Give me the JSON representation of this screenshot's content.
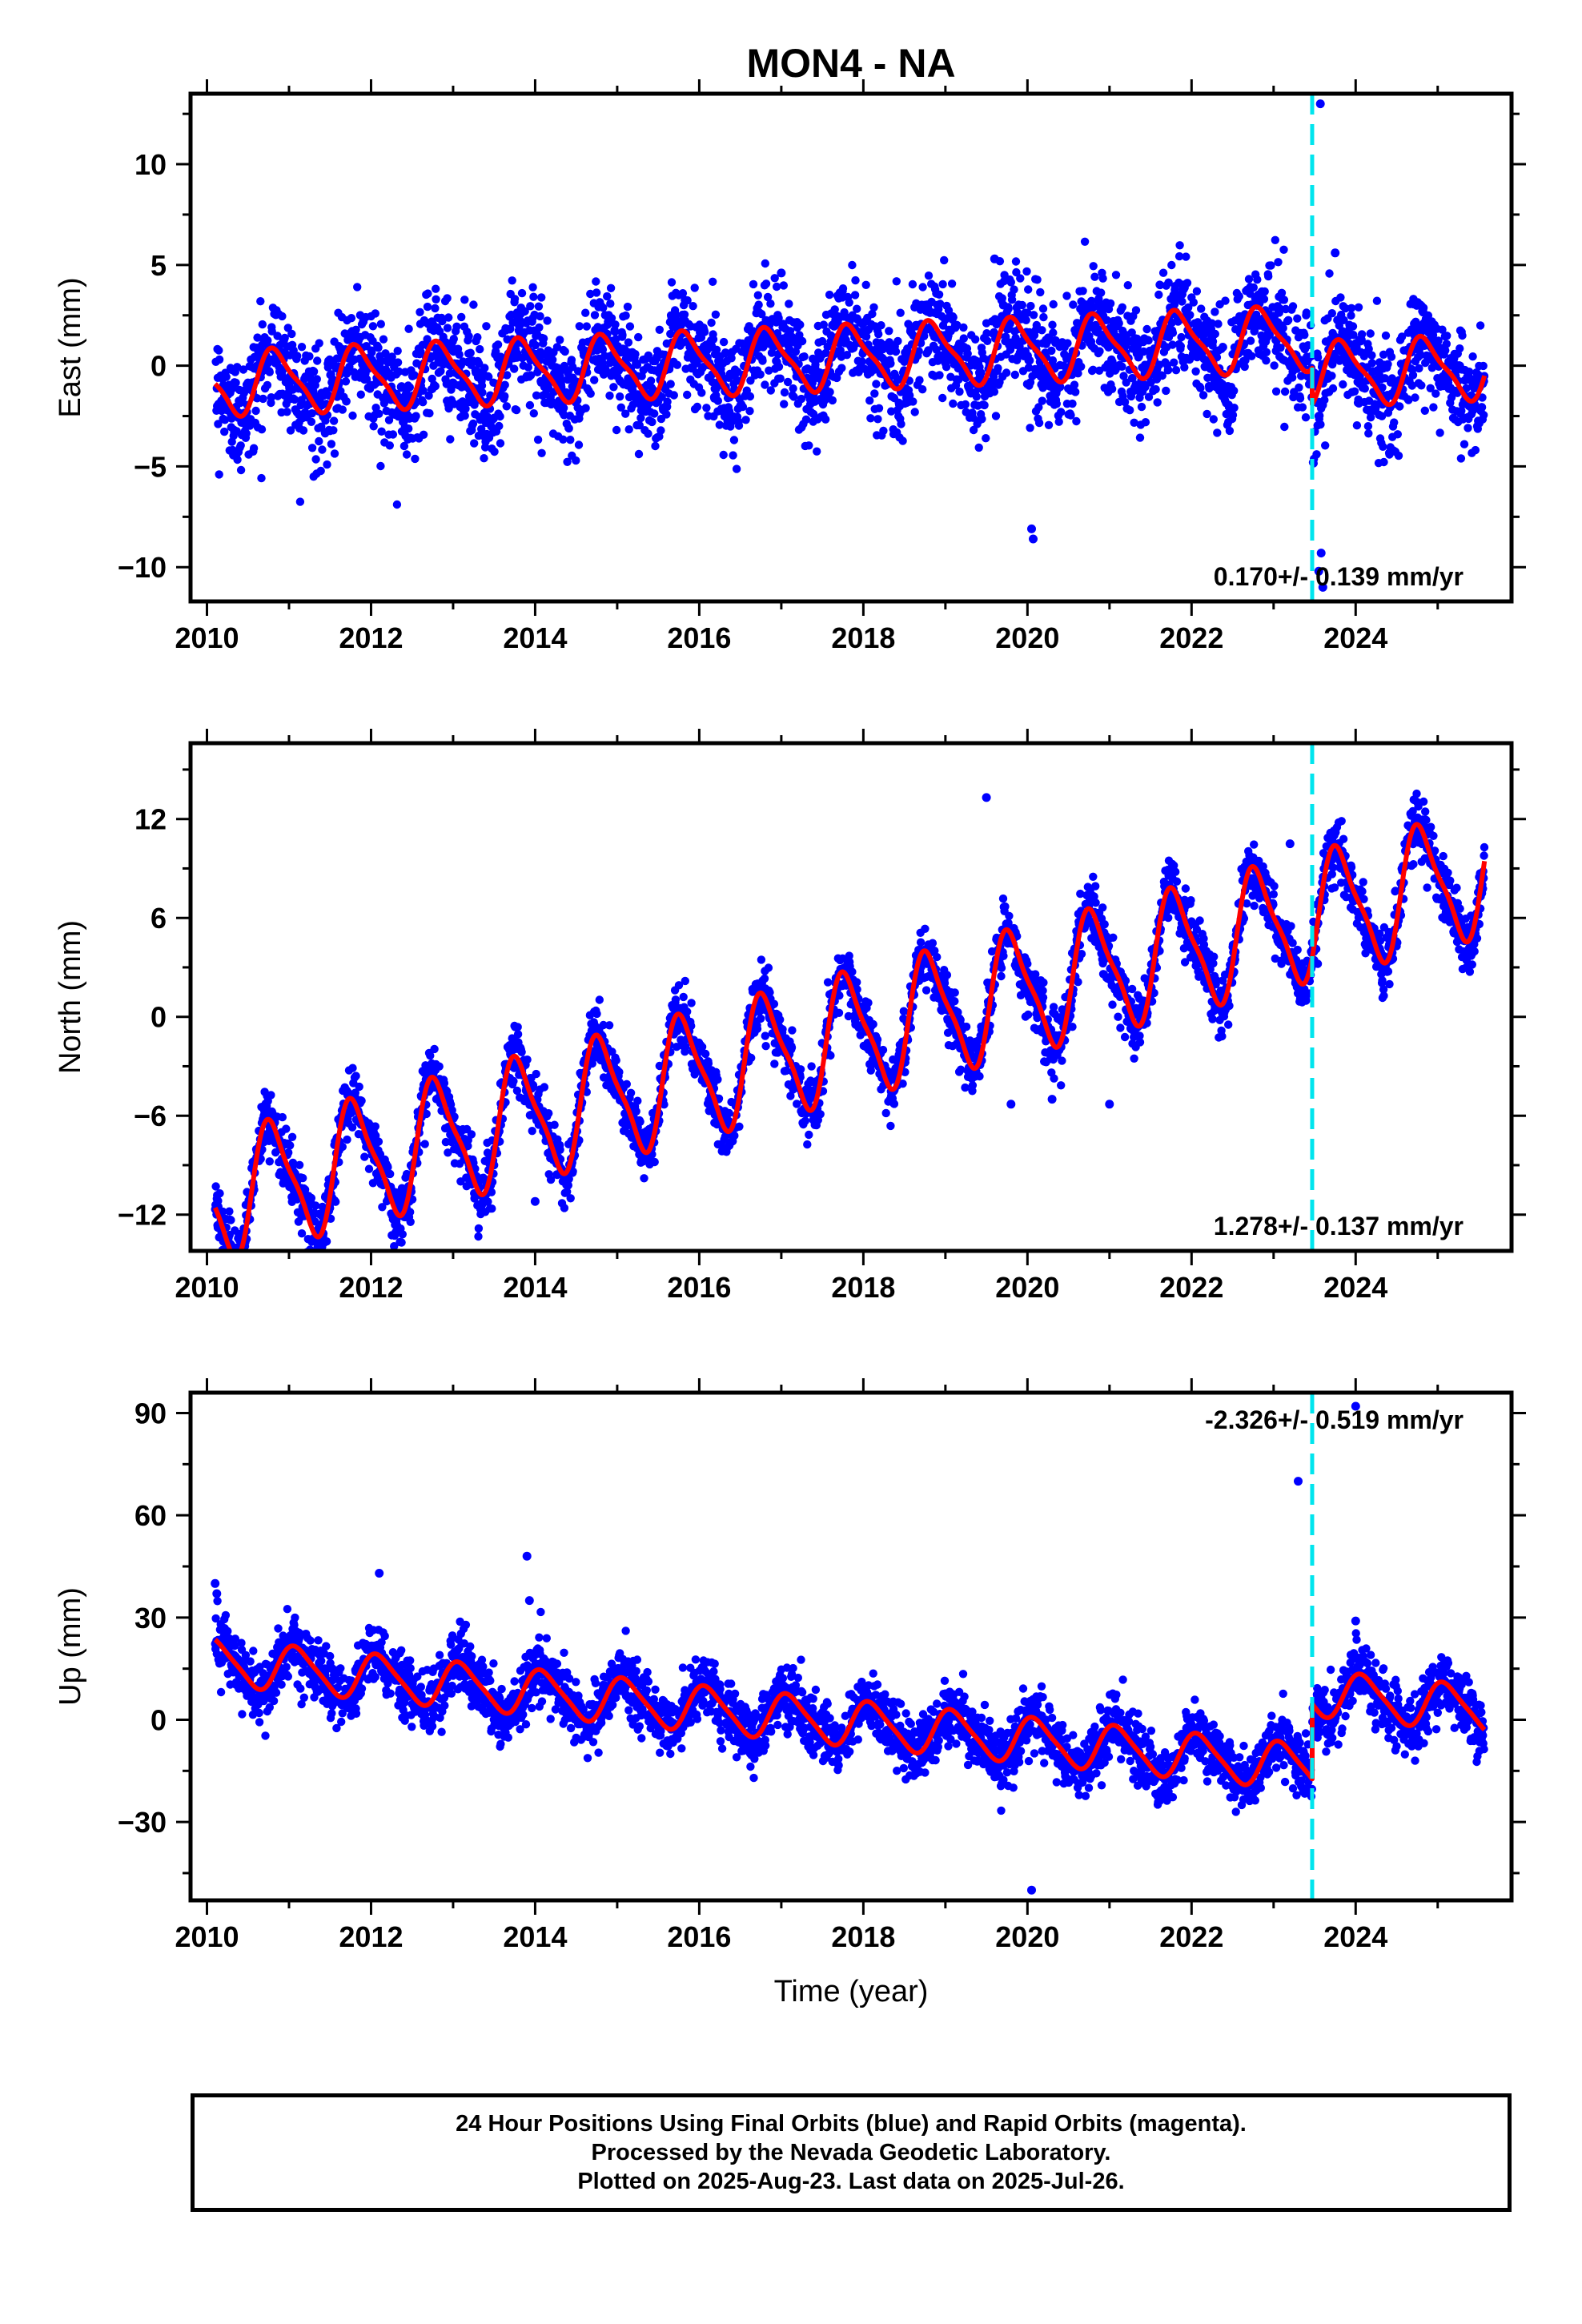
{
  "title": "MON4 - NA",
  "footer": {
    "line1": "24 Hour Positions Using Final Orbits (blue) and Rapid Orbits (magenta).",
    "line2": "Processed by the Nevada Geodetic Laboratory.",
    "line3": "Plotted on 2025-Aug-23. Last data on 2025-Jul-26."
  },
  "colors": {
    "final_points": "#0000ff",
    "model": "#ff0000",
    "event_line": "#00e5ee",
    "axes": "#000000"
  },
  "chart_data": [
    {
      "type": "scatter",
      "component": "east",
      "ylabel": "East (mm)",
      "xlabel": "",
      "xlim": [
        2009.8,
        2025.9
      ],
      "ylim": [
        -11.7,
        13.5
      ],
      "xticks": [
        2010,
        2012,
        2014,
        2016,
        2018,
        2020,
        2022,
        2024
      ],
      "yticks": [
        -10,
        -5,
        0,
        5,
        10
      ],
      "ytick_labels": [
        "−10",
        "−5",
        "0",
        "5",
        "10"
      ],
      "rate_label": "0.170+/- 0.139 mm/yr",
      "rate_position": "bottom-right",
      "event_line_x": 2023.47,
      "data_range": [
        2010.1,
        2025.57
      ],
      "model": {
        "velocity": 0.17,
        "offset": -0.9,
        "annual_amp": 1.5,
        "annual_phase": 0.6,
        "semiannual_amp": 0.4,
        "step_at_event": -1.8,
        "step_decay": 0.0
      },
      "noise_sd": 1.4,
      "outliers": [
        [
          2020.05,
          -8.1
        ],
        [
          2020.07,
          -8.6
        ],
        [
          2023.55,
          -10.2
        ],
        [
          2023.58,
          -9.3
        ],
        [
          2023.6,
          -11.0
        ],
        [
          2023.57,
          13.0
        ],
        [
          2023.75,
          5.6
        ],
        [
          2019.6,
          5.3
        ],
        [
          2017.0,
          4.6
        ]
      ]
    },
    {
      "type": "scatter",
      "component": "north",
      "ylabel": "North (mm)",
      "xlabel": "",
      "xlim": [
        2009.8,
        2025.9
      ],
      "ylim": [
        -14.2,
        16.6
      ],
      "xticks": [
        2010,
        2012,
        2014,
        2016,
        2018,
        2020,
        2022,
        2024
      ],
      "yticks": [
        -12,
        -6,
        0,
        6,
        12
      ],
      "ytick_labels": [
        "−12",
        "−6",
        "0",
        "6",
        "12"
      ],
      "rate_label": "1.278+/- 0.137 mm/yr",
      "rate_position": "bottom-right",
      "event_line_x": 2023.47,
      "data_range": [
        2010.1,
        2025.57
      ],
      "model": {
        "velocity": 1.278,
        "offset": -11.0,
        "annual_amp": 3.6,
        "annual_phase": 0.55,
        "semiannual_amp": 0.9,
        "step_at_event": 0.0,
        "step_decay": 0.0
      },
      "noise_sd": 0.9,
      "outliers": [
        [
          2019.5,
          13.3
        ],
        [
          2019.8,
          -5.3
        ],
        [
          2020.3,
          -5.0
        ],
        [
          2021.0,
          -5.3
        ],
        [
          2023.2,
          10.5
        ],
        [
          2014.0,
          -11.2
        ]
      ]
    },
    {
      "type": "scatter",
      "component": "up",
      "ylabel": "Up (mm)",
      "xlabel": "Time (year)",
      "xlim": [
        2009.8,
        2025.9
      ],
      "ylim": [
        -53,
        96
      ],
      "xticks": [
        2010,
        2012,
        2014,
        2016,
        2018,
        2020,
        2022,
        2024
      ],
      "yticks": [
        -30,
        0,
        30,
        60,
        90
      ],
      "ytick_labels": [
        "−30",
        "0",
        "30",
        "60",
        "90"
      ],
      "rate_label": "-2.326+/- 0.519 mm/yr",
      "rate_position": "top-right",
      "event_line_x": 2023.47,
      "data_range": [
        2010.1,
        2025.57
      ],
      "model": {
        "velocity": -2.326,
        "offset": 17.0,
        "annual_amp": 6.5,
        "annual_phase": 0.85,
        "semiannual_amp": 1.2,
        "step_at_event": 22.0,
        "step_decay": 0.0
      },
      "noise_sd": 4.5,
      "outliers": [
        [
          2010.1,
          40
        ],
        [
          2010.12,
          37
        ],
        [
          2012.1,
          43
        ],
        [
          2013.9,
          48
        ],
        [
          2013.93,
          35
        ],
        [
          2023.3,
          70
        ],
        [
          2024.0,
          92
        ],
        [
          2020.05,
          -50
        ],
        [
          2024.0,
          29
        ]
      ]
    }
  ]
}
